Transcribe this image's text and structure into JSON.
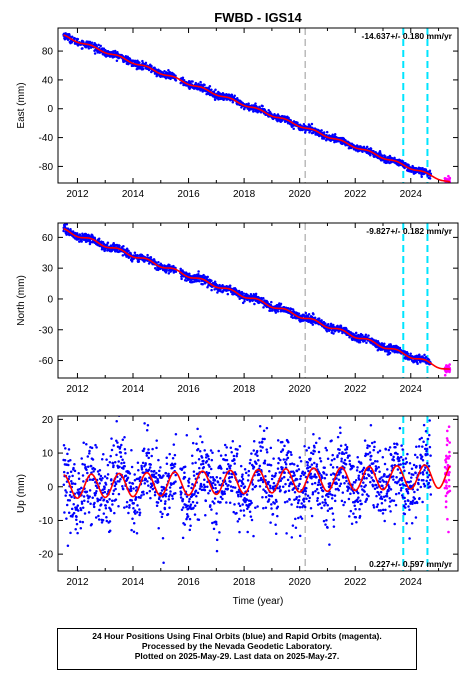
{
  "title": "FWBD - IGS14",
  "xlabel": "Time (year)",
  "footer": {
    "line1": "24 Hour Positions Using Final Orbits (blue) and Rapid Orbits (magenta).",
    "line2": "Processed by the Nevada Geodetic Laboratory.",
    "line3": "Plotted on 2025-May-29. Last data on 2025-May-27."
  },
  "colors": {
    "final": "#0000ff",
    "rapid": "#ff00ff",
    "model": "#ff0000",
    "event_dashed": "#00e5ff",
    "event_gray": "#bbbbbb"
  },
  "chart_data": [
    {
      "type": "scatter",
      "name": "east",
      "ylabel": "East (mm)",
      "rate_text": "-14.637+/- 0.180 mm/yr",
      "xlim": [
        2011.3,
        2025.7
      ],
      "ylim": [
        -103,
        112
      ],
      "xticks": [
        2012,
        2014,
        2016,
        2018,
        2020,
        2022,
        2024
      ],
      "yticks": [
        80,
        40,
        0,
        -40,
        -80
      ],
      "data_start": 2011.5,
      "data_end_final": 2024.72,
      "data_end_rapid": 2025.41,
      "start_value": 101,
      "rate": -14.637,
      "seasonal_amplitude": 1.5,
      "scatter_sd": 2.5,
      "event_lines": [
        {
          "x": 2020.2,
          "style": "gray"
        },
        {
          "x": 2023.73,
          "style": "cyan"
        },
        {
          "x": 2024.6,
          "style": "cyan"
        }
      ]
    },
    {
      "type": "scatter",
      "name": "north",
      "ylabel": "North (mm)",
      "rate_text": "-9.827+/- 0.182 mm/yr",
      "xlim": [
        2011.3,
        2025.7
      ],
      "ylim": [
        -77,
        74
      ],
      "xticks": [
        2012,
        2014,
        2016,
        2018,
        2020,
        2022,
        2024
      ],
      "yticks": [
        60,
        30,
        0,
        -30,
        -60
      ],
      "data_start": 2011.5,
      "data_end_final": 2024.72,
      "data_end_rapid": 2025.41,
      "start_value": 67,
      "rate": -9.827,
      "seasonal_amplitude": 1.5,
      "scatter_sd": 2.0,
      "event_lines": [
        {
          "x": 2020.2,
          "style": "gray"
        },
        {
          "x": 2023.73,
          "style": "cyan"
        },
        {
          "x": 2024.6,
          "style": "cyan"
        }
      ]
    },
    {
      "type": "scatter",
      "name": "up",
      "ylabel": "Up (mm)",
      "rate_text": "0.227+/- 0.597 mm/yr",
      "xlim": [
        2011.3,
        2025.7
      ],
      "ylim": [
        -25,
        21
      ],
      "xticks": [
        2012,
        2014,
        2016,
        2018,
        2020,
        2022,
        2024
      ],
      "yticks": [
        20,
        10,
        0,
        -10,
        -20
      ],
      "data_start": 2011.5,
      "data_end_final": 2024.72,
      "data_end_rapid": 2025.41,
      "start_value": 0,
      "rate": 0.227,
      "seasonal_amplitude": 3.5,
      "scatter_sd": 5.5,
      "event_lines": [
        {
          "x": 2020.2,
          "style": "gray"
        },
        {
          "x": 2023.73,
          "style": "cyan"
        },
        {
          "x": 2024.6,
          "style": "cyan"
        }
      ]
    }
  ]
}
